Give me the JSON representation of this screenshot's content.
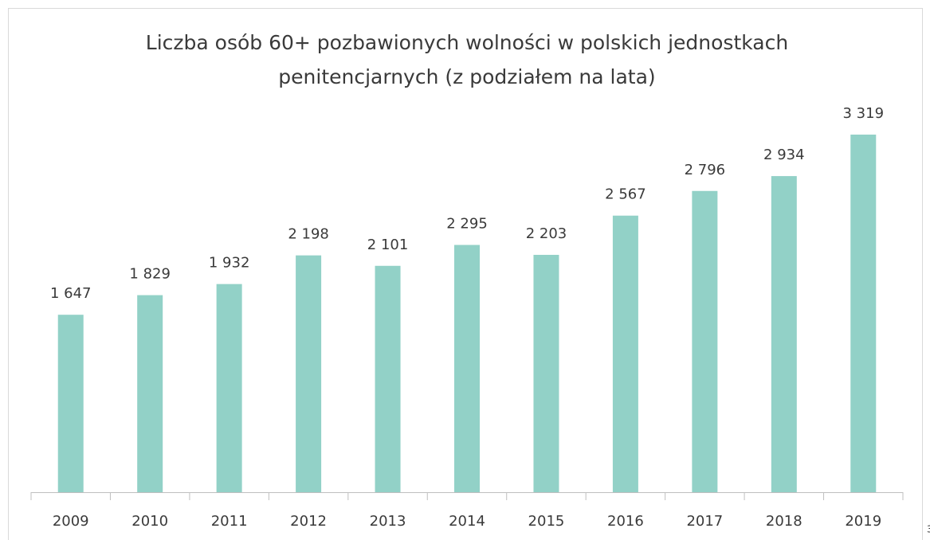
{
  "chart_data": {
    "type": "bar",
    "title": [
      "Liczba osób 60+ pozbawionych wolności w polskich jednostkach",
      "penitencjarnych (z podziałem na lata)"
    ],
    "categories": [
      "2009",
      "2010",
      "2011",
      "2012",
      "2013",
      "2014",
      "2015",
      "2016",
      "2017",
      "2018",
      "2019"
    ],
    "values": [
      1647,
      1829,
      1932,
      2198,
      2101,
      2295,
      2203,
      2567,
      2796,
      2934,
      3319
    ],
    "value_labels": [
      "1 647",
      "1 829",
      "1 932",
      "2 198",
      "2 101",
      "2 295",
      "2 203",
      "2 567",
      "2 796",
      "2 934",
      "3 319"
    ],
    "color": "#92d1c7"
  },
  "edge_text": "3"
}
